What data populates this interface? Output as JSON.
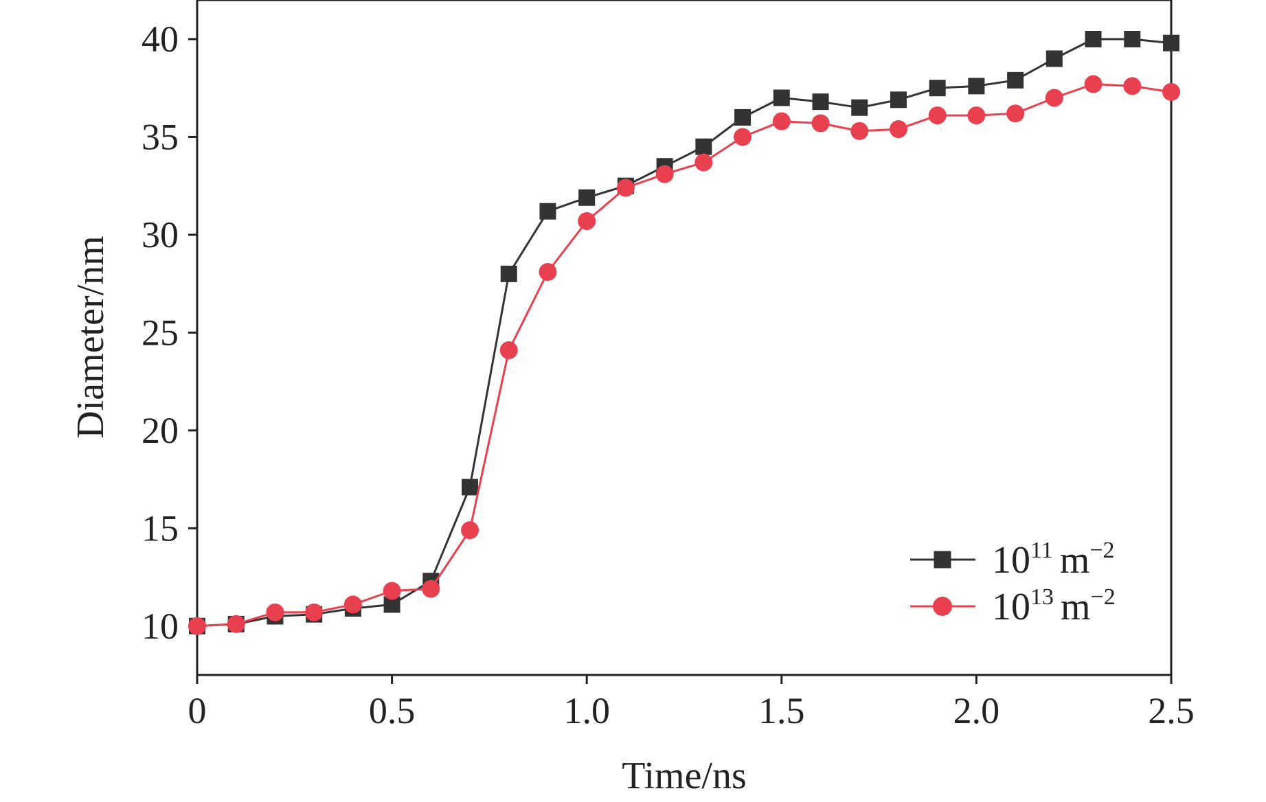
{
  "chart_data": {
    "type": "line",
    "xlabel": "Time/ns",
    "ylabel": "Diameter/nm",
    "xlim": [
      0,
      2.5
    ],
    "ylim": [
      7.5,
      42
    ],
    "xticks": [
      "0",
      "0.5",
      "1.0",
      "1.5",
      "2.0",
      "2.5"
    ],
    "xtick_values": [
      0,
      0.5,
      1.0,
      1.5,
      2.0,
      2.5
    ],
    "yticks": [
      "10",
      "15",
      "20",
      "25",
      "30",
      "35",
      "40"
    ],
    "ytick_values": [
      10,
      15,
      20,
      25,
      30,
      35,
      40
    ],
    "grid": false,
    "legend_position": "bottom-right",
    "x": [
      0,
      0.1,
      0.2,
      0.3,
      0.4,
      0.5,
      0.6,
      0.7,
      0.8,
      0.9,
      1.0,
      1.1,
      1.2,
      1.3,
      1.4,
      1.5,
      1.6,
      1.7,
      1.8,
      1.9,
      2.0,
      2.1,
      2.2,
      2.3,
      2.4,
      2.5
    ],
    "series": [
      {
        "legend_base": "10",
        "legend_exp": "11",
        "legend_unit": "m",
        "legend_unit_exp": "−2",
        "color": "#333333",
        "marker": "square",
        "values": [
          10.0,
          10.1,
          10.5,
          10.6,
          10.9,
          11.1,
          12.3,
          17.1,
          28.0,
          31.2,
          31.9,
          32.5,
          33.5,
          34.5,
          36.0,
          37.0,
          36.8,
          36.5,
          36.9,
          37.5,
          37.6,
          37.9,
          39.0,
          40.0,
          40.0,
          39.8
        ]
      },
      {
        "legend_base": "10",
        "legend_exp": "13",
        "legend_unit": "m",
        "legend_unit_exp": "−2",
        "color": "#e8404e",
        "marker": "circle",
        "values": [
          10.0,
          10.1,
          10.7,
          10.7,
          11.1,
          11.8,
          11.9,
          14.9,
          24.1,
          28.1,
          30.7,
          32.4,
          33.1,
          33.7,
          35.0,
          35.8,
          35.7,
          35.3,
          35.4,
          36.1,
          36.1,
          36.2,
          37.0,
          37.7,
          37.6,
          37.3
        ]
      }
    ]
  }
}
